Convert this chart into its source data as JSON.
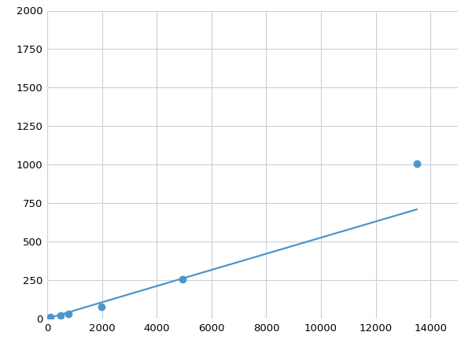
{
  "x_points": [
    123,
    493,
    790,
    1975,
    4938,
    13500
  ],
  "y_points": [
    10,
    22,
    32,
    78,
    256,
    1005
  ],
  "line_color": "#4e96c8",
  "marker_color": "#4e96c8",
  "marker_size": 6,
  "linewidth": 1.6,
  "xlim": [
    0,
    15000
  ],
  "ylim": [
    0,
    2000
  ],
  "xticks": [
    0,
    2000,
    4000,
    6000,
    8000,
    10000,
    12000,
    14000
  ],
  "yticks": [
    0,
    250,
    500,
    750,
    1000,
    1250,
    1500,
    1750,
    2000
  ],
  "grid_color": "#c8d0d8",
  "background_color": "#ffffff",
  "tick_fontsize": 9.5
}
